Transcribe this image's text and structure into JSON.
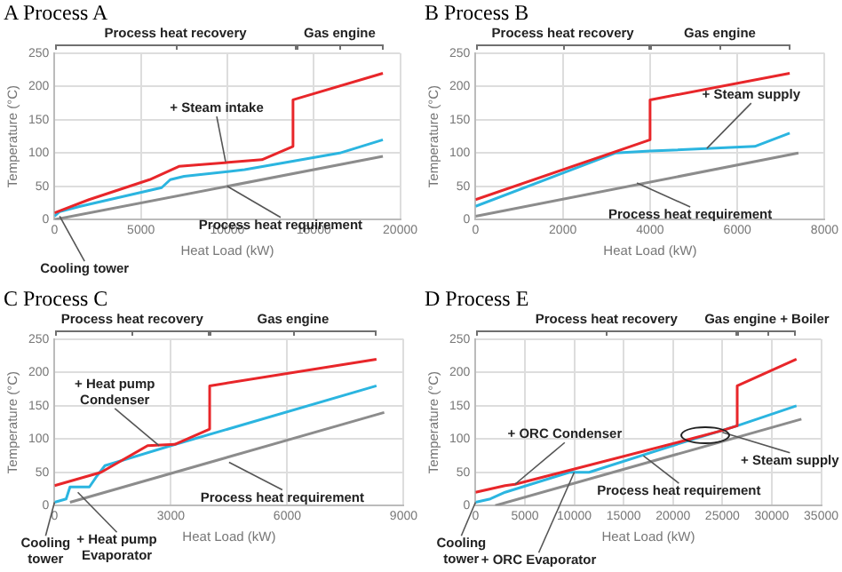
{
  "chart_data": [
    {
      "type": "line",
      "title": "A Process A",
      "xlabel": "Heat Load (kW)",
      "ylabel": "Temperature (°C)",
      "xlim": [
        0,
        20000
      ],
      "xticks": [
        0,
        5000,
        10000,
        15000,
        20000
      ],
      "ylim": [
        0,
        250
      ],
      "yticks": [
        0,
        50,
        100,
        150,
        200,
        250
      ],
      "grid": true,
      "marker": "none",
      "line_style": "solid",
      "series": [
        {
          "color": "#e8262a",
          "x": [
            0,
            2000,
            5500,
            7200,
            12000,
            13800,
            13800,
            19000
          ],
          "values": [
            10,
            30,
            60,
            80,
            90,
            110,
            180,
            220
          ]
        },
        {
          "color": "#2bb5e0",
          "x": [
            0,
            300,
            1500,
            6200,
            6700,
            7500,
            11000,
            16500,
            19000
          ],
          "values": [
            5,
            12,
            20,
            48,
            60,
            65,
            75,
            100,
            120
          ]
        },
        {
          "color": "#8c8c8c",
          "x": [
            0,
            19000
          ],
          "values": [
            0,
            95
          ]
        }
      ],
      "annotations": [
        "Process heat recovery",
        "Gas engine",
        {
          "text": "+ Steam intake",
          "x": 9900,
          "y": 87
        },
        {
          "text": "Process heat requirement",
          "x": 10000,
          "y": 50
        },
        {
          "text": "Cooling tower",
          "x": 300,
          "y": 5
        }
      ]
    },
    {
      "type": "line",
      "title": "B Process B",
      "xlabel": "Heat Load (kW)",
      "ylabel": "Temperature (°C)",
      "xlim": [
        0,
        8000
      ],
      "xticks": [
        0,
        2000,
        4000,
        6000,
        8000
      ],
      "ylim": [
        0,
        250
      ],
      "yticks": [
        0,
        50,
        100,
        150,
        200,
        250
      ],
      "grid": true,
      "marker": "none",
      "line_style": "solid",
      "series": [
        {
          "color": "#e8262a",
          "x": [
            0,
            4000,
            4000,
            7200
          ],
          "values": [
            30,
            120,
            180,
            220
          ]
        },
        {
          "color": "#2bb5e0",
          "x": [
            0,
            3200,
            4000,
            6400,
            7200
          ],
          "values": [
            20,
            100,
            103,
            110,
            130
          ]
        },
        {
          "color": "#8c8c8c",
          "x": [
            0,
            7400
          ],
          "values": [
            5,
            100
          ]
        }
      ],
      "annotations": [
        "Process heat recovery",
        "Gas engine",
        {
          "text": "+ Steam supply",
          "x": 5300,
          "y": 107
        },
        {
          "text": "Process heat requirement",
          "x": 3700,
          "y": 55
        }
      ]
    },
    {
      "type": "line",
      "title": "C Process C",
      "xlabel": "Heat Load (kW)",
      "ylabel": "Temperature (°C)",
      "xlim": [
        0,
        9000
      ],
      "xticks": [
        0,
        3000,
        6000,
        9000
      ],
      "ylim": [
        0,
        250
      ],
      "yticks": [
        0,
        50,
        100,
        150,
        200,
        250
      ],
      "grid": true,
      "marker": "none",
      "line_style": "solid",
      "series": [
        {
          "color": "#e8262a",
          "x": [
            0,
            1200,
            1500,
            2400,
            3100,
            4000,
            4000,
            8300
          ],
          "values": [
            30,
            50,
            60,
            90,
            92,
            115,
            180,
            220
          ]
        },
        {
          "color": "#2bb5e0",
          "x": [
            0,
            300,
            400,
            900,
            1100,
            1300,
            3000,
            8300
          ],
          "values": [
            5,
            10,
            28,
            28,
            45,
            60,
            90,
            180
          ]
        },
        {
          "color": "#8c8c8c",
          "x": [
            400,
            8500
          ],
          "values": [
            5,
            140
          ]
        }
      ],
      "annotations": [
        "Process heat recovery",
        "Gas engine",
        {
          "text": "+ Heat pump Condenser",
          "x": 2700,
          "y": 90
        },
        {
          "text": "+ Heat pump Evaporator",
          "x": 600,
          "y": 20
        },
        {
          "text": "Cooling tower",
          "x": 0,
          "y": 5
        },
        {
          "text": "Process heat requirement",
          "x": 4500,
          "y": 65
        }
      ]
    },
    {
      "type": "line",
      "title": "D Process E",
      "xlabel": "Heat Load (kW)",
      "ylabel": "Temperature (°C)",
      "xlim": [
        0,
        35000
      ],
      "xticks": [
        0,
        5000,
        10000,
        15000,
        20000,
        25000,
        30000,
        35000
      ],
      "ylim": [
        0,
        250
      ],
      "yticks": [
        0,
        50,
        100,
        150,
        200,
        250
      ],
      "grid": true,
      "marker": "none",
      "line_style": "solid",
      "series": [
        {
          "color": "#e8262a",
          "x": [
            0,
            3000,
            4000,
            21000,
            25000,
            26500,
            26500,
            32500
          ],
          "values": [
            20,
            30,
            32,
            97,
            113,
            120,
            180,
            220
          ]
        },
        {
          "color": "#2bb5e0",
          "x": [
            0,
            1500,
            3000,
            9500,
            11500,
            21000,
            26500,
            32500
          ],
          "values": [
            5,
            10,
            20,
            50,
            50,
            95,
            120,
            150
          ]
        },
        {
          "color": "#8c8c8c",
          "x": [
            2000,
            33000
          ],
          "values": [
            0,
            130
          ]
        }
      ],
      "annotations": [
        "Process heat recovery",
        "Gas engine + Boiler",
        {
          "text": "+ ORC Condenser",
          "x": 4000,
          "y": 32
        },
        {
          "text": "+ ORC Evaporator",
          "x": 10000,
          "y": 50
        },
        {
          "text": "+ Steam supply",
          "x": 25000,
          "y": 110
        },
        {
          "text": "Process heat requirement",
          "x": 17000,
          "y": 75
        },
        {
          "text": "Cooling tower",
          "x": 0,
          "y": 5
        }
      ]
    }
  ]
}
